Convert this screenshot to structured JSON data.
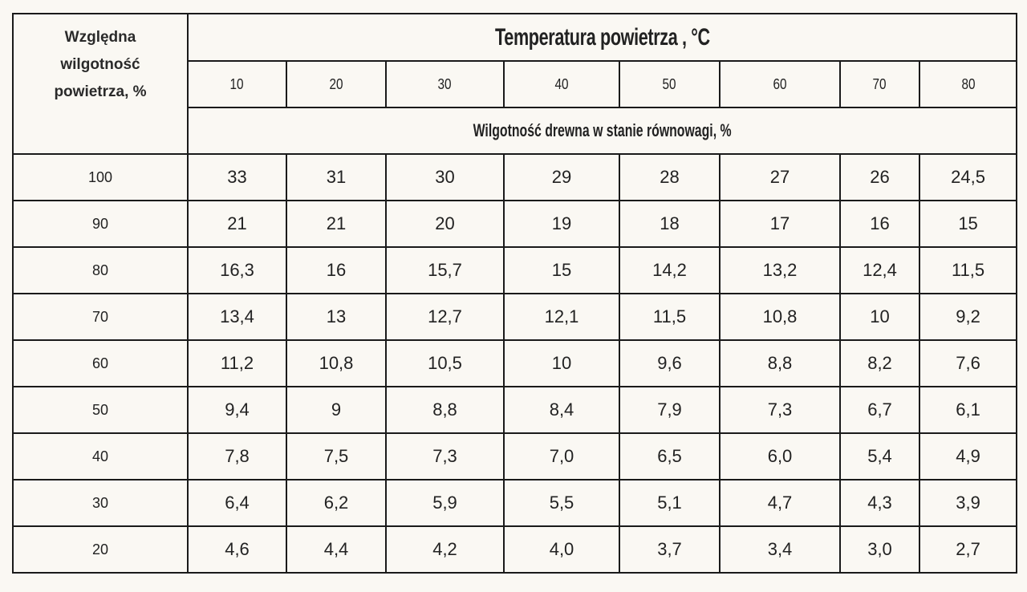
{
  "header": {
    "row_header": [
      "Względna",
      "wilgotność",
      "powietrza, %"
    ],
    "title": "Temperatura powietrza , °C",
    "subtitle": "Wilgotność drewna w stanie równowagi, %",
    "temperatures": [
      "10",
      "20",
      "30",
      "40",
      "50",
      "60",
      "70",
      "80"
    ]
  },
  "rows": [
    {
      "rh": "100",
      "v": [
        "33",
        "31",
        "30",
        "29",
        "28",
        "27",
        "26",
        "24,5"
      ]
    },
    {
      "rh": "90",
      "v": [
        "21",
        "21",
        "20",
        "19",
        "18",
        "17",
        "16",
        "15"
      ]
    },
    {
      "rh": "80",
      "v": [
        "16,3",
        "16",
        "15,7",
        "15",
        "14,2",
        "13,2",
        "12,4",
        "11,5"
      ]
    },
    {
      "rh": "70",
      "v": [
        "13,4",
        "13",
        "12,7",
        "12,1",
        "11,5",
        "10,8",
        "10",
        "9,2"
      ]
    },
    {
      "rh": "60",
      "v": [
        "11,2",
        "10,8",
        "10,5",
        "10",
        "9,6",
        "8,8",
        "8,2",
        "7,6"
      ]
    },
    {
      "rh": "50",
      "v": [
        "9,4",
        "9",
        "8,8",
        "8,4",
        "7,9",
        "7,3",
        "6,7",
        "6,1"
      ]
    },
    {
      "rh": "40",
      "v": [
        "7,8",
        "7,5",
        "7,3",
        "7,0",
        "6,5",
        "6,0",
        "5,4",
        "4,9"
      ]
    },
    {
      "rh": "30",
      "v": [
        "6,4",
        "6,2",
        "5,9",
        "5,5",
        "5,1",
        "4,7",
        "4,3",
        "3,9"
      ]
    },
    {
      "rh": "20",
      "v": [
        "4,6",
        "4,4",
        "4,2",
        "4,0",
        "3,7",
        "3,4",
        "3,0",
        "2,7"
      ]
    }
  ]
}
